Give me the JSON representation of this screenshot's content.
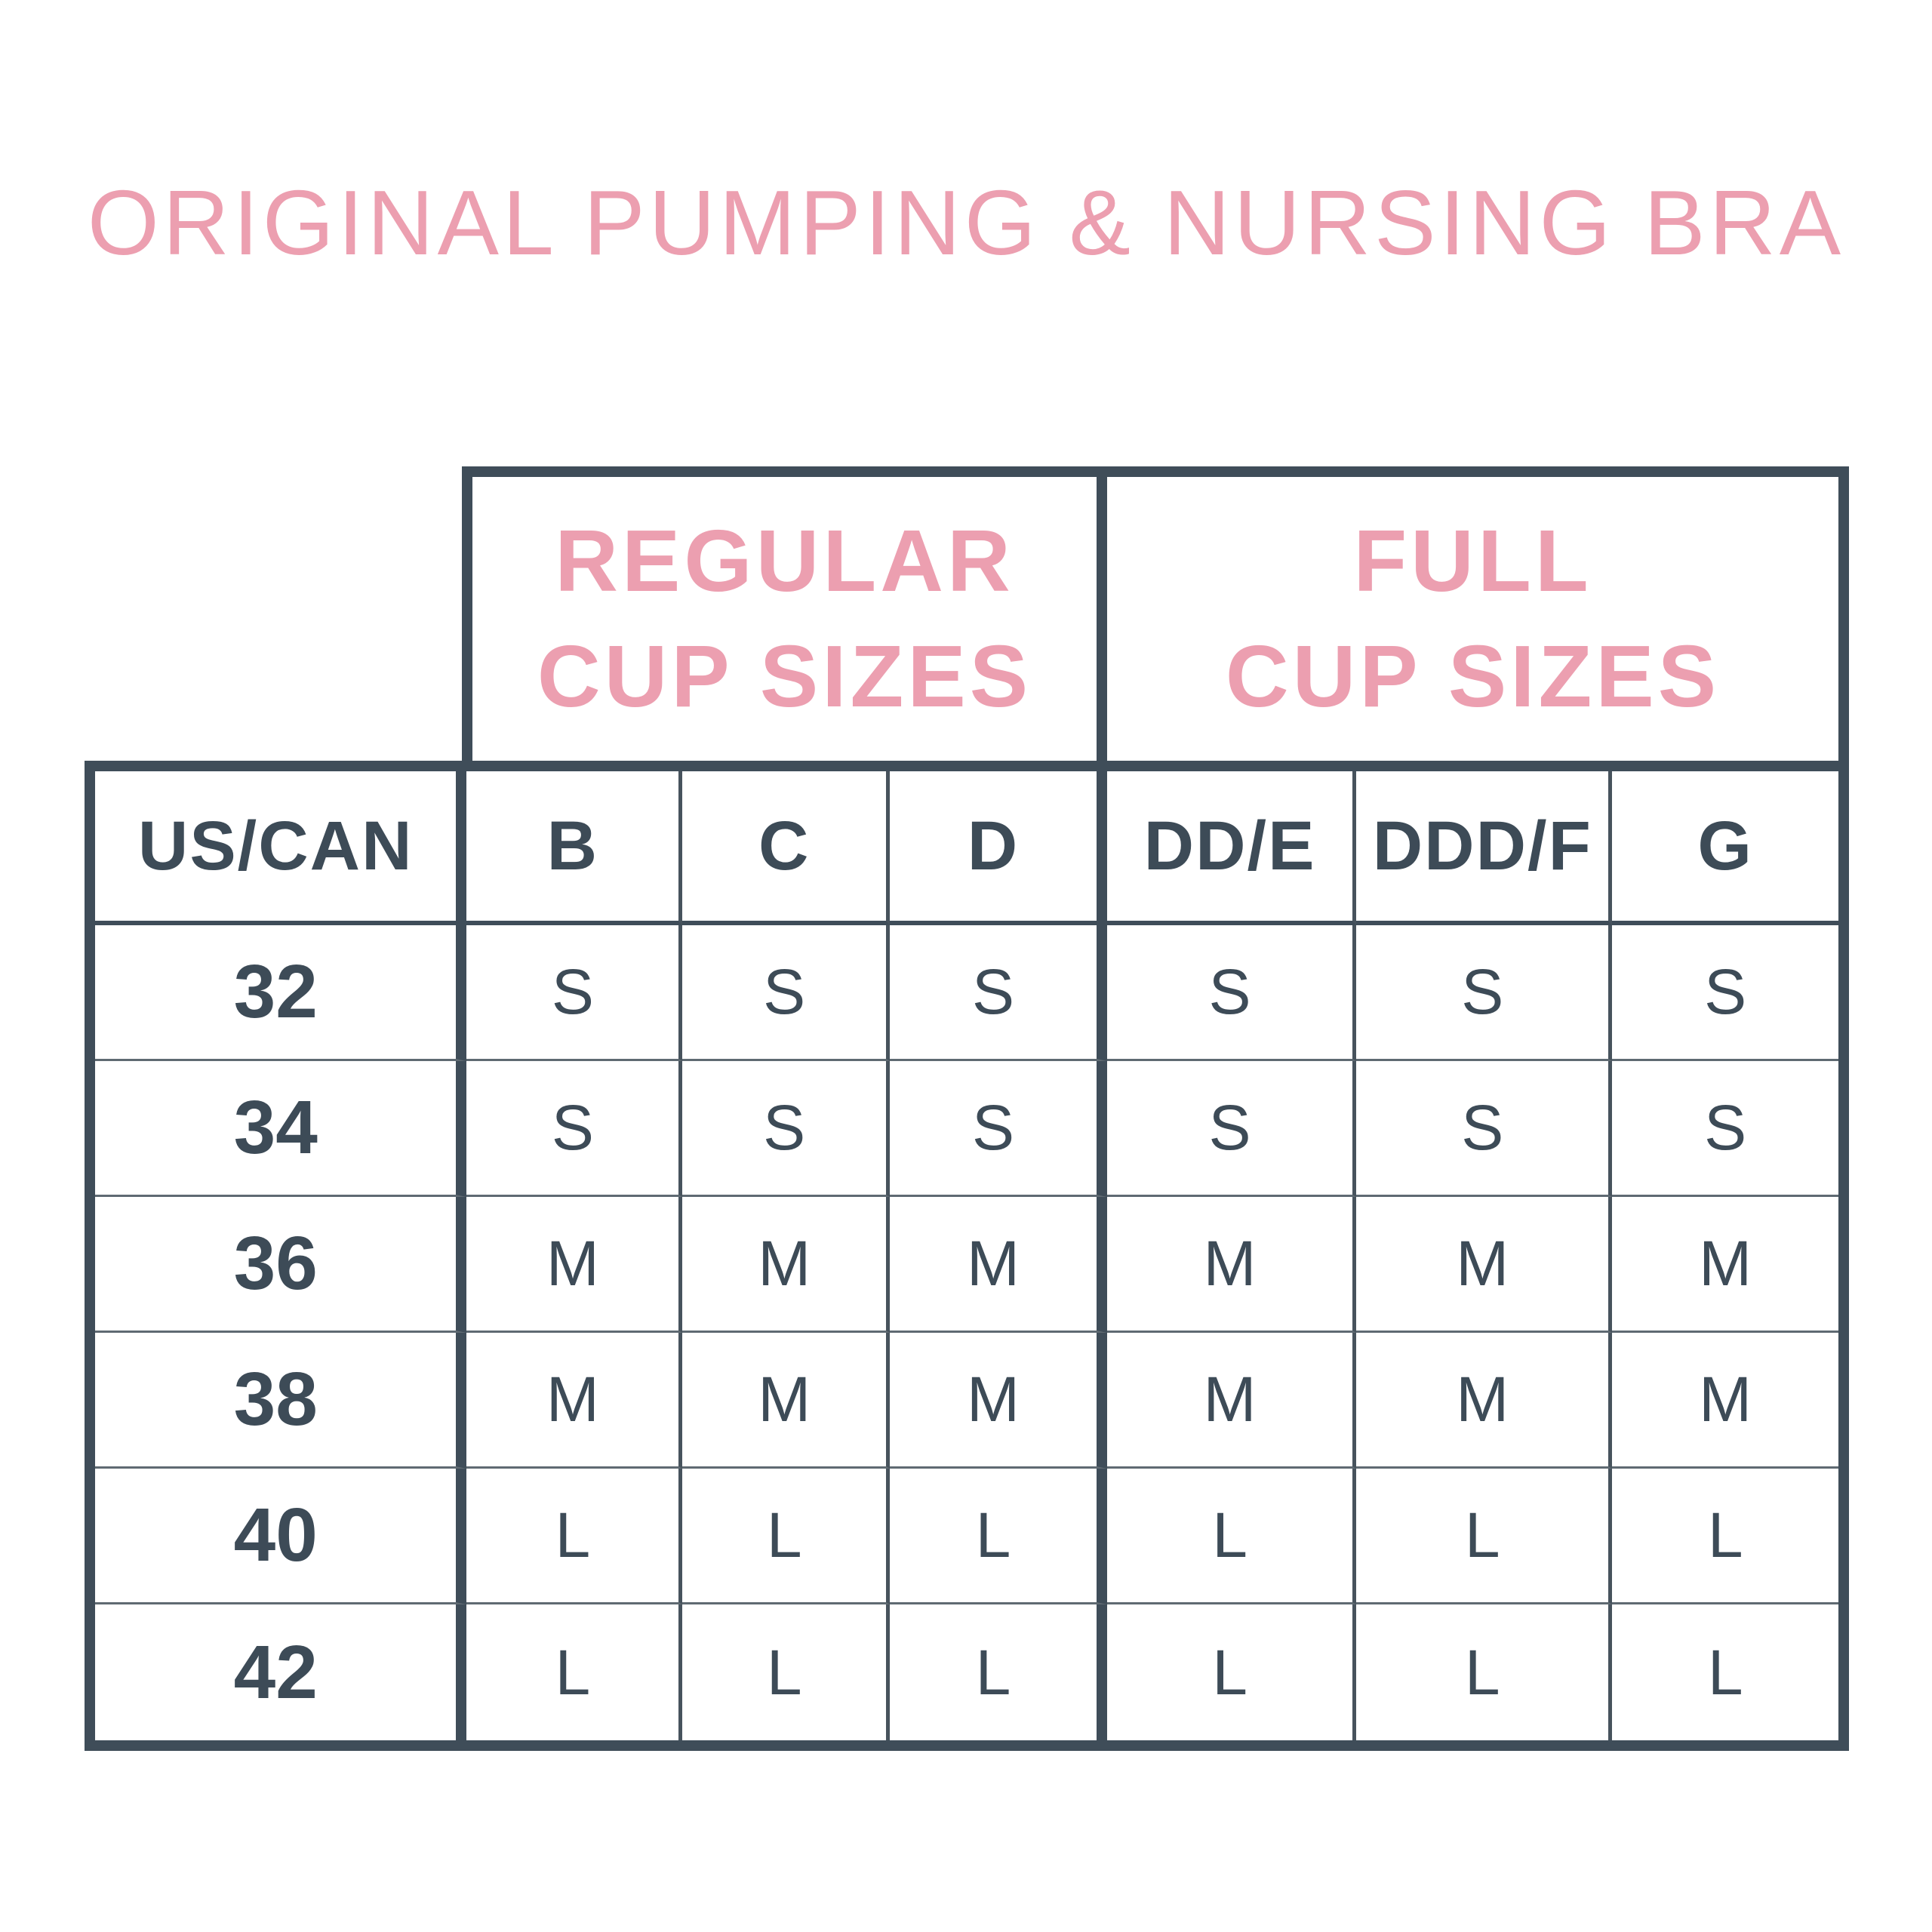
{
  "title": "ORIGINAL PUMPING & NURSING BRA",
  "groups": [
    {
      "line1": "REGULAR",
      "line2": "CUP SIZES"
    },
    {
      "line1": "FULL",
      "line2": "CUP SIZES"
    }
  ],
  "colors": {
    "pink": "#ec9fb0",
    "dark_slate": "#3f4d59",
    "thin_grid": "#5f6a72",
    "background": "#ffffff"
  },
  "chart_data": {
    "type": "table",
    "title": "ORIGINAL PUMPING & NURSING BRA",
    "column_groups": [
      {
        "label": "REGULAR CUP SIZES",
        "columns": [
          "B",
          "C",
          "D"
        ]
      },
      {
        "label": "FULL CUP SIZES",
        "columns": [
          "DD/E",
          "DDD/F",
          "G"
        ]
      }
    ],
    "columns": [
      "US/CAN",
      "B",
      "C",
      "D",
      "DD/E",
      "DDD/F",
      "G"
    ],
    "rows": [
      [
        "32",
        "S",
        "S",
        "S",
        "S",
        "S",
        "S"
      ],
      [
        "34",
        "S",
        "S",
        "S",
        "S",
        "S",
        "S"
      ],
      [
        "36",
        "M",
        "M",
        "M",
        "M",
        "M",
        "M"
      ],
      [
        "38",
        "M",
        "M",
        "M",
        "M",
        "M",
        "M"
      ],
      [
        "40",
        "L",
        "L",
        "L",
        "L",
        "L",
        "L"
      ],
      [
        "42",
        "L",
        "L",
        "L",
        "L",
        "L",
        "L"
      ]
    ]
  }
}
